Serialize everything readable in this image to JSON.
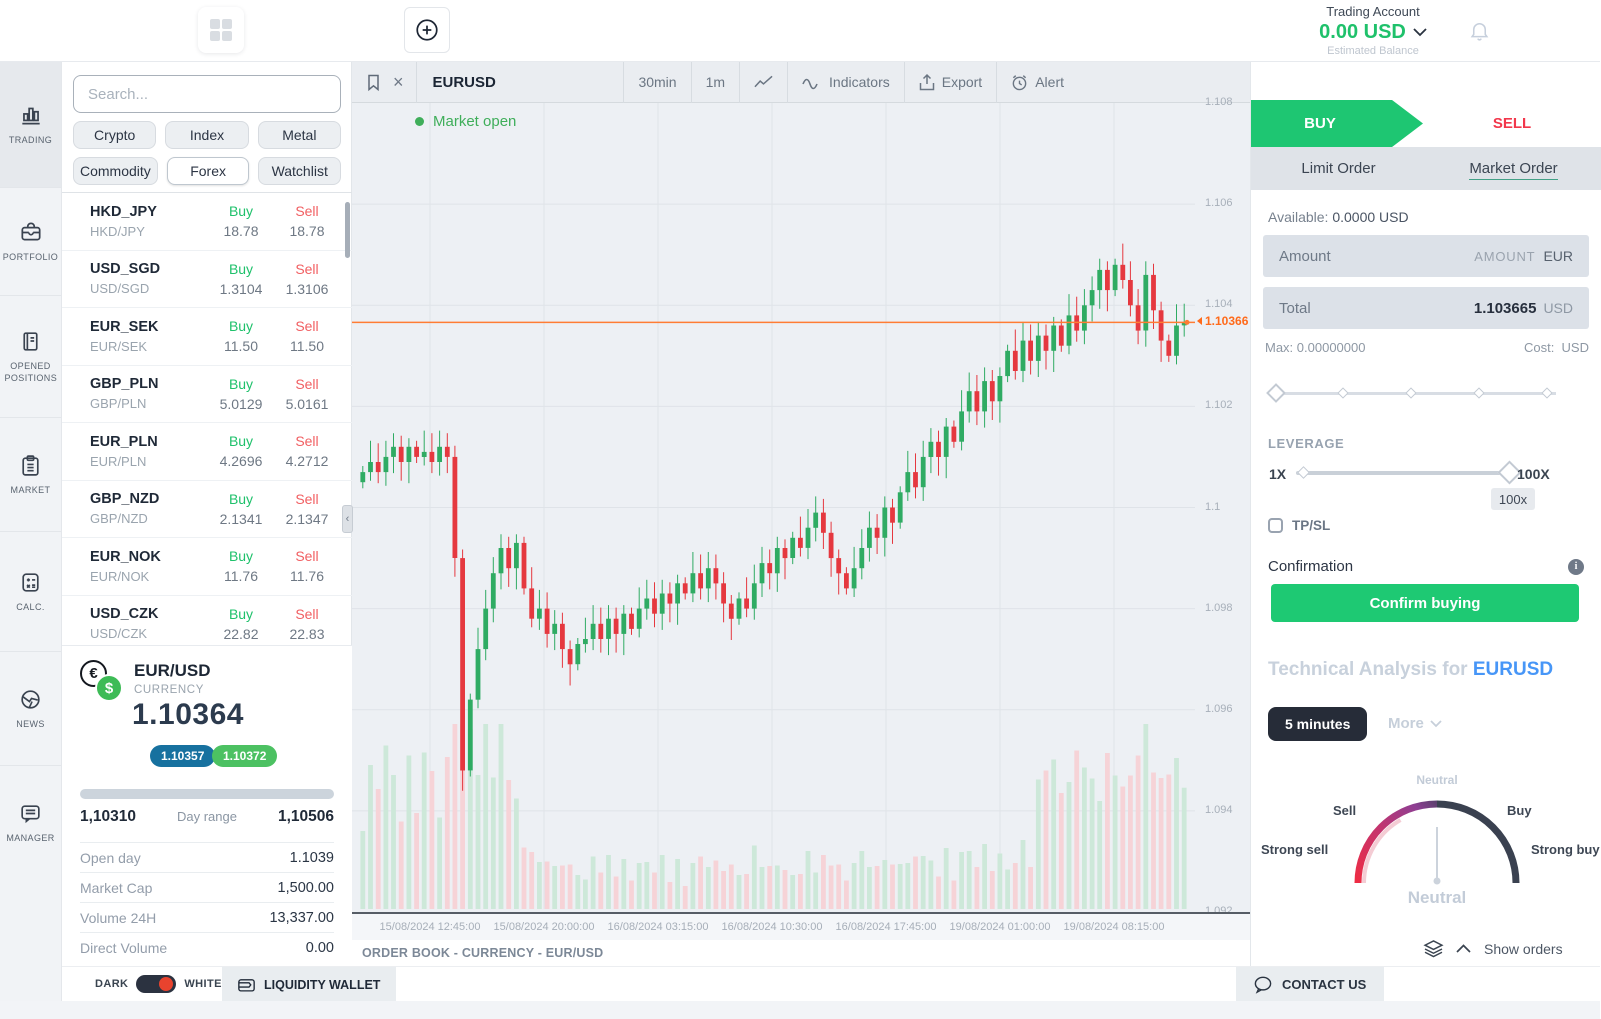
{
  "header": {
    "account_label": "Trading Account",
    "balance": "0.00 USD",
    "balance_sub": "Estimated Balance"
  },
  "sidebar": {
    "items": [
      {
        "label": "TRADING"
      },
      {
        "label": "PORTFOLIO"
      },
      {
        "label": "OPENED POSITIONS"
      },
      {
        "label": "MARKET"
      },
      {
        "label": "CALC."
      },
      {
        "label": "NEWS"
      },
      {
        "label": "MANAGER"
      }
    ]
  },
  "watch": {
    "search_placeholder": "Search...",
    "filters": [
      "Crypto",
      "Index",
      "Metal",
      "Commodity",
      "Forex",
      "Watchlist"
    ],
    "columns": {
      "buy": "Buy",
      "sell": "Sell"
    },
    "rows": [
      {
        "symbol": "HKD_JPY",
        "name": "HKD/JPY",
        "buy": "18.78",
        "sell": "18.78"
      },
      {
        "symbol": "USD_SGD",
        "name": "USD/SGD",
        "buy": "1.3104",
        "sell": "1.3106"
      },
      {
        "symbol": "EUR_SEK",
        "name": "EUR/SEK",
        "buy": "11.50",
        "sell": "11.50"
      },
      {
        "symbol": "GBP_PLN",
        "name": "GBP/PLN",
        "buy": "5.0129",
        "sell": "5.0161"
      },
      {
        "symbol": "EUR_PLN",
        "name": "EUR/PLN",
        "buy": "4.2696",
        "sell": "4.2712"
      },
      {
        "symbol": "GBP_NZD",
        "name": "GBP/NZD",
        "buy": "2.1341",
        "sell": "2.1347"
      },
      {
        "symbol": "EUR_NOK",
        "name": "EUR/NOK",
        "buy": "11.76",
        "sell": "11.76"
      },
      {
        "symbol": "USD_CZK",
        "name": "USD/CZK",
        "buy": "22.82",
        "sell": "22.83"
      }
    ]
  },
  "instrument": {
    "pair": "EUR/USD",
    "type": "CURRENCY",
    "price": "1.10364",
    "bid": "1.10357",
    "ask": "1.10372",
    "range_low": "1,10310",
    "range_label": "Day range",
    "range_high": "1,10506",
    "stats": [
      {
        "label": "Open day",
        "value": "1.1039"
      },
      {
        "label": "Market Cap",
        "value": "1,500.00"
      },
      {
        "label": "Volume 24H",
        "value": "13,337.00"
      },
      {
        "label": "Direct Volume",
        "value": "0.00"
      }
    ]
  },
  "chart": {
    "type": "candlestick",
    "title": "EURUSD",
    "status": "Market open",
    "tf_30min": "30min",
    "tf_1m": "1m",
    "indicators_label": "Indicators",
    "export_label": "Export",
    "alert_label": "Alert",
    "current_price_label": "1.10366",
    "current_price": 1.10366,
    "y_min": 1.092,
    "y_max": 1.108,
    "y_ticks": [
      "1.108",
      "1.106",
      "1.104",
      "1.102",
      "1.1",
      "1.098",
      "1.096",
      "1.094",
      "1.092"
    ],
    "x_ticks": [
      "15/08/2024 12:45:00",
      "15/08/2024 20:00:00",
      "16/08/2024 03:15:00",
      "16/08/2024 10:30:00",
      "16/08/2024 17:45:00",
      "19/08/2024 01:00:00",
      "19/08/2024 08:15:00"
    ],
    "first_open": 1.1005,
    "closes": [
      1.1007,
      1.1009,
      1.1007,
      1.101,
      1.1012,
      1.1009,
      1.1012,
      1.101,
      1.1011,
      1.1009,
      1.1012,
      1.101,
      1.099,
      1.0948,
      1.0962,
      1.0972,
      1.098,
      1.0987,
      1.0992,
      1.0988,
      1.0993,
      1.0984,
      1.0978,
      1.098,
      1.0975,
      1.0977,
      1.0972,
      1.0969,
      1.0973,
      1.0974,
      1.0977,
      1.0974,
      1.0978,
      1.0975,
      1.0979,
      1.0976,
      1.098,
      1.0982,
      1.0979,
      1.0983,
      1.0981,
      1.0985,
      1.0983,
      1.0987,
      1.0984,
      1.0988,
      1.0985,
      1.0981,
      1.0978,
      1.0982,
      1.098,
      1.0985,
      1.0989,
      1.0987,
      1.0992,
      1.099,
      1.0994,
      1.0992,
      1.0996,
      1.0999,
      1.0995,
      1.099,
      1.0987,
      1.0984,
      1.0988,
      1.0992,
      1.0996,
      1.0994,
      1.1,
      1.0997,
      1.1003,
      1.1007,
      1.1004,
      1.101,
      1.1013,
      1.101,
      1.1016,
      1.1013,
      1.1019,
      1.1023,
      1.1019,
      1.1025,
      1.1021,
      1.1026,
      1.1031,
      1.1027,
      1.1033,
      1.1029,
      1.1034,
      1.1031,
      1.1036,
      1.1032,
      1.1038,
      1.1035,
      1.104,
      1.1043,
      1.1047,
      1.1043,
      1.1048,
      1.1045,
      1.104,
      1.1035,
      1.1046,
      1.1039,
      1.1033,
      1.103,
      1.1036,
      1.10366
    ],
    "colors": {
      "up": "#2fab63",
      "down": "#e5383f",
      "vol_up": "#cde8d9",
      "vol_down": "#f6d3d7",
      "line": "#ff7c33"
    }
  },
  "order_panel": {
    "buy_tab": "BUY",
    "sell_tab": "SELL",
    "limit_order": "Limit Order",
    "market_order": "Market Order",
    "available_label": "Available:",
    "available_value": "0.0000 USD",
    "amount_label": "Amount",
    "amount_placeholder": "AMOUNT",
    "amount_currency": "EUR",
    "total_label": "Total",
    "total_value": "1.103665",
    "total_currency": "USD",
    "max_label": "Max: 0.00000000",
    "cost_label": "Cost:",
    "cost_currency": "USD",
    "leverage_label": "LEVERAGE",
    "leverage_min": "1X",
    "leverage_max": "100X",
    "leverage_value": "100x",
    "tpsl_label": "TP/SL",
    "confirmation_label": "Confirmation",
    "confirm_button": "Confirm buying"
  },
  "ta": {
    "heading_prefix": "Technical Analysis for",
    "symbol": "EURUSD",
    "timeframe": "5 minutes",
    "more_label": "More",
    "gauge": {
      "neutral_top": "Neutral",
      "sell": "Sell",
      "buy": "Buy",
      "strong_sell": "Strong sell",
      "strong_buy": "Strong buy",
      "verdict": "Neutral"
    }
  },
  "footer": {
    "order_book": "ORDER BOOK - CURRENCY - EUR/USD",
    "show_orders": "Show orders",
    "dark": "DARK",
    "white": "WHITE",
    "wallet": "LIQUIDITY WALLET",
    "contact": "CONTACT US"
  }
}
